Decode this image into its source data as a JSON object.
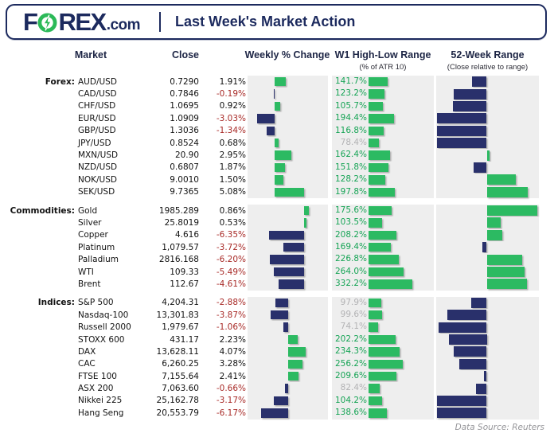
{
  "header": {
    "logo_f": "F",
    "logo_rex": "REX",
    "logo_com": ".com",
    "title": "Last Week's Market Action"
  },
  "columns": {
    "market": "Market",
    "close": "Close",
    "weekly": "Weekly % Change",
    "w1": "W1 High-Low Range",
    "w1_sub": "(% of ATR 10)",
    "w52": "52-Week Range",
    "w52_sub": "(Close relative to range)"
  },
  "footer": {
    "source": "Data Source: Reuters"
  },
  "colors": {
    "navy": "#29306b",
    "green": "#2cba62",
    "green_text": "#16a455",
    "red_text": "#a82a27",
    "muted_text": "#b2b2b4",
    "chart_bg": "#eeeeee",
    "header_navy": "#1c2a5e"
  },
  "chart_data": {
    "type": "table",
    "title": "Last Week's Market Action",
    "column_headers": [
      "Market",
      "Close",
      "Weekly % Change",
      "W1 High-Low Range (% of ATR 10)",
      "52-Week Range (Close relative to range)"
    ],
    "w52_encoding": "signed fraction of distance from range midpoint; -1 = at 52-week low, +1 = at 52-week high",
    "sections": [
      {
        "label": "Forex:",
        "rows": [
          {
            "market": "AUD/USD",
            "close": "0.7290",
            "weekly": "1.91%",
            "weekly_pct": 1.91,
            "w1": "141.7%",
            "w1_atr_pct": 141.7,
            "w52_close_rel": -0.29
          },
          {
            "market": "CAD/USD",
            "close": "0.7846",
            "weekly": "-0.19%",
            "weekly_pct": -0.19,
            "w1": "123.2%",
            "w1_atr_pct": 123.2,
            "w52_close_rel": -0.66
          },
          {
            "market": "CHF/USD",
            "close": "1.0695",
            "weekly": "0.92%",
            "weekly_pct": 0.92,
            "w1": "105.7%",
            "w1_atr_pct": 105.7,
            "w52_close_rel": -0.67
          },
          {
            "market": "EUR/USD",
            "close": "1.0909",
            "weekly": "-3.03%",
            "weekly_pct": -3.03,
            "w1": "194.4%",
            "w1_atr_pct": 194.4,
            "w52_close_rel": -0.98
          },
          {
            "market": "GBP/USD",
            "close": "1.3036",
            "weekly": "-1.34%",
            "weekly_pct": -1.34,
            "w1": "116.8%",
            "w1_atr_pct": 116.8,
            "w52_close_rel": -0.98
          },
          {
            "market": "JPY/USD",
            "close": "0.8524",
            "weekly": "0.68%",
            "weekly_pct": 0.68,
            "w1": "78.4%",
            "w1_atr_pct": 78.4,
            "w52_close_rel": -0.98
          },
          {
            "market": "MXN/USD",
            "close": "20.90",
            "weekly": "2.95%",
            "weekly_pct": 2.95,
            "w1": "162.4%",
            "w1_atr_pct": 162.4,
            "w52_close_rel": 0.05
          },
          {
            "market": "NZD/USD",
            "close": "0.6807",
            "weekly": "1.87%",
            "weekly_pct": 1.87,
            "w1": "151.8%",
            "w1_atr_pct": 151.8,
            "w52_close_rel": -0.26
          },
          {
            "market": "NOK/USD",
            "close": "9.0010",
            "weekly": "1.50%",
            "weekly_pct": 1.5,
            "w1": "128.2%",
            "w1_atr_pct": 128.2,
            "w52_close_rel": 0.58
          },
          {
            "market": "SEK/USD",
            "close": "9.7365",
            "weekly": "5.08%",
            "weekly_pct": 5.08,
            "w1": "197.8%",
            "w1_atr_pct": 197.8,
            "w52_close_rel": 0.81
          }
        ]
      },
      {
        "label": "Commodities:",
        "rows": [
          {
            "market": "Gold",
            "close": "1985.289",
            "weekly": "0.86%",
            "weekly_pct": 0.86,
            "w1": "175.6%",
            "w1_atr_pct": 175.6,
            "w52_close_rel": 1.0
          },
          {
            "market": "Silver",
            "close": "25.8019",
            "weekly": "0.53%",
            "weekly_pct": 0.53,
            "w1": "103.5%",
            "w1_atr_pct": 103.5,
            "w52_close_rel": 0.27
          },
          {
            "market": "Copper",
            "close": "4.616",
            "weekly": "-6.35%",
            "weekly_pct": -6.35,
            "w1": "208.2%",
            "w1_atr_pct": 208.2,
            "w52_close_rel": 0.31
          },
          {
            "market": "Platinum",
            "close": "1,079.57",
            "weekly": "-3.72%",
            "weekly_pct": -3.72,
            "w1": "169.4%",
            "w1_atr_pct": 169.4,
            "w52_close_rel": -0.08
          },
          {
            "market": "Palladium",
            "close": "2816.168",
            "weekly": "-6.20%",
            "weekly_pct": -6.2,
            "w1": "226.8%",
            "w1_atr_pct": 226.8,
            "w52_close_rel": 0.7
          },
          {
            "market": "WTI",
            "close": "109.33",
            "weekly": "-5.49%",
            "weekly_pct": -5.49,
            "w1": "264.0%",
            "w1_atr_pct": 264.0,
            "w52_close_rel": 0.75
          },
          {
            "market": "Brent",
            "close": "112.67",
            "weekly": "-4.61%",
            "weekly_pct": -4.61,
            "w1": "332.2%",
            "w1_atr_pct": 332.2,
            "w52_close_rel": 0.8
          }
        ]
      },
      {
        "label": "Indices:",
        "rows": [
          {
            "market": "S&P 500",
            "close": "4,204.31",
            "weekly": "-2.88%",
            "weekly_pct": -2.88,
            "w1": "97.9%",
            "w1_atr_pct": 97.9,
            "w52_close_rel": -0.31
          },
          {
            "market": "Nasdaq-100",
            "close": "13,301.83",
            "weekly": "-3.87%",
            "weekly_pct": -3.87,
            "w1": "99.6%",
            "w1_atr_pct": 99.6,
            "w52_close_rel": -0.78
          },
          {
            "market": "Russell 2000",
            "close": "1,979.67",
            "weekly": "-1.06%",
            "weekly_pct": -1.06,
            "w1": "74.1%",
            "w1_atr_pct": 74.1,
            "w52_close_rel": -0.95
          },
          {
            "market": "STOXX 600",
            "close": "431.17",
            "weekly": "2.23%",
            "weekly_pct": 2.23,
            "w1": "202.2%",
            "w1_atr_pct": 202.2,
            "w52_close_rel": -0.75
          },
          {
            "market": "DAX",
            "close": "13,628.11",
            "weekly": "4.07%",
            "weekly_pct": 4.07,
            "w1": "234.3%",
            "w1_atr_pct": 234.3,
            "w52_close_rel": -0.65
          },
          {
            "market": "CAC",
            "close": "6,260.25",
            "weekly": "3.28%",
            "weekly_pct": 3.28,
            "w1": "256.2%",
            "w1_atr_pct": 256.2,
            "w52_close_rel": -0.55
          },
          {
            "market": "FTSE 100",
            "close": "7,155.64",
            "weekly": "2.41%",
            "weekly_pct": 2.41,
            "w1": "209.6%",
            "w1_atr_pct": 209.6,
            "w52_close_rel": -0.06
          },
          {
            "market": "ASX 200",
            "close": "7,063.60",
            "weekly": "-0.66%",
            "weekly_pct": -0.66,
            "w1": "82.4%",
            "w1_atr_pct": 82.4,
            "w52_close_rel": -0.21
          },
          {
            "market": "Nikkei 225",
            "close": "25,162.78",
            "weekly": "-3.17%",
            "weekly_pct": -3.17,
            "w1": "104.2%",
            "w1_atr_pct": 104.2,
            "w52_close_rel": -0.99
          },
          {
            "market": "Hang Seng",
            "close": "20,553.79",
            "weekly": "-6.17%",
            "weekly_pct": -6.17,
            "w1": "138.6%",
            "w1_atr_pct": 138.6,
            "w52_close_rel": -0.99
          }
        ]
      }
    ]
  }
}
